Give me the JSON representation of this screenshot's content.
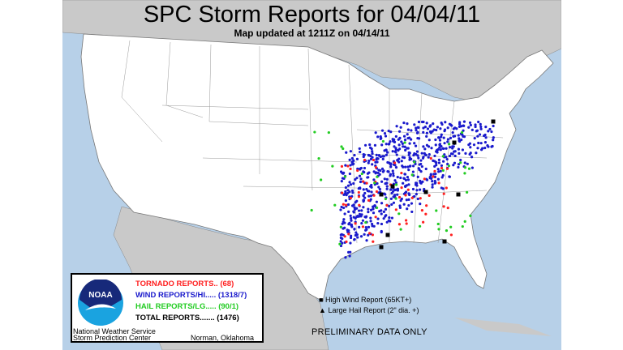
{
  "header": {
    "title": "SPC Storm Reports for 04/04/11",
    "subtitle": "Map updated at 1211Z on 04/14/11"
  },
  "legend": {
    "logo_text": "NOAA",
    "rows": [
      {
        "label": "TORNADO REPORTS.. (68)",
        "color": "#ff2020"
      },
      {
        "label": "WIND REPORTS/HI..... (1318/7)",
        "color": "#1a1acc"
      },
      {
        "label": "HAIL REPORTS/LG..... (90/1)",
        "color": "#22cc22"
      },
      {
        "label": "TOTAL REPORTS....... (1476)",
        "color": "#000000"
      }
    ],
    "org_line1": "National Weather Service",
    "org_line2": "Storm Prediction Center",
    "location": "Norman, Oklahoma"
  },
  "key": {
    "high_wind": "High Wind Report (65KT+)",
    "large_hail": "Large Hail Report (2\" dia. +)",
    "square_icon": "square",
    "triangle_icon": "triangle"
  },
  "notice": "PRELIMINARY DATA ONLY",
  "colors": {
    "ocean": "#b7d0e8",
    "foreign_land": "#c9c9c9",
    "us_land": "#ffffff",
    "tornado": "#ff2020",
    "wind": "#1a1acc",
    "hail": "#22cc22"
  }
}
